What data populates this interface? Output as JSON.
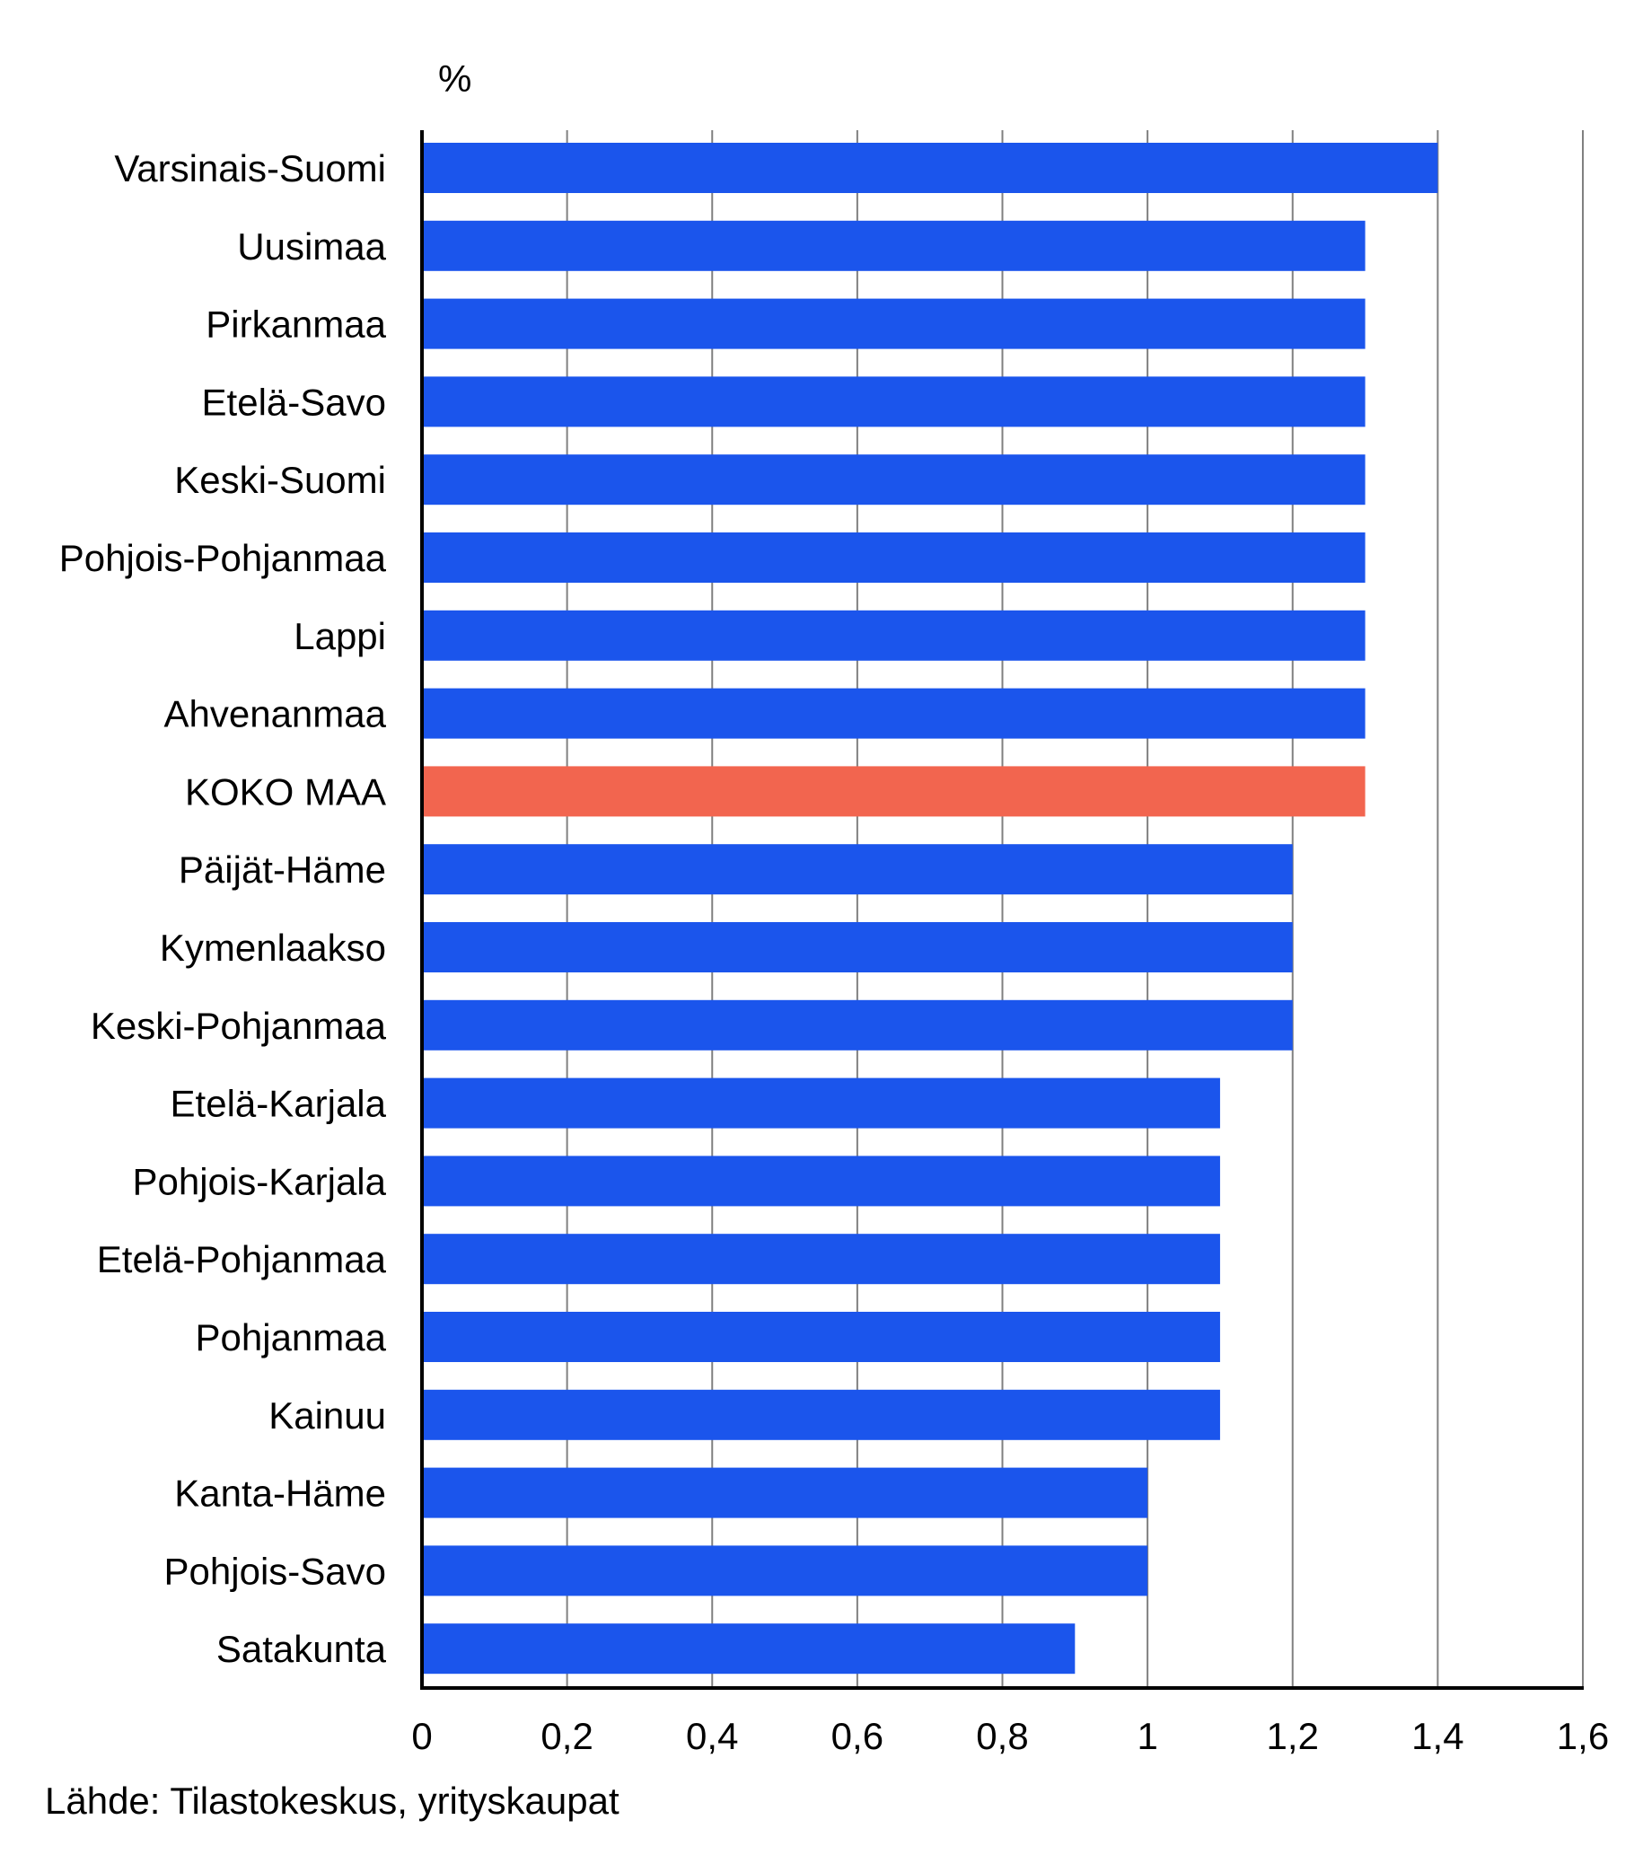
{
  "chart_data": {
    "type": "bar",
    "orientation": "horizontal",
    "unit_label": "%",
    "categories": [
      "Varsinais-Suomi",
      "Uusimaa",
      "Pirkanmaa",
      "Etelä-Savo",
      "Keski-Suomi",
      "Pohjois-Pohjanmaa",
      "Lappi",
      "Ahvenanmaa",
      "KOKO MAA",
      "Päijät-Häme",
      "Kymenlaakso",
      "Keski-Pohjanmaa",
      "Etelä-Karjala",
      "Pohjois-Karjala",
      "Etelä-Pohjanmaa",
      "Pohjanmaa",
      "Kainuu",
      "Kanta-Häme",
      "Pohjois-Savo",
      "Satakunta"
    ],
    "values": [
      1.4,
      1.3,
      1.3,
      1.3,
      1.3,
      1.3,
      1.3,
      1.3,
      1.3,
      1.2,
      1.2,
      1.2,
      1.1,
      1.1,
      1.1,
      1.1,
      1.1,
      1.0,
      1.0,
      0.9
    ],
    "highlight_category": "KOKO MAA",
    "xlim": [
      0,
      1.6
    ],
    "xticks": [
      0,
      0.2,
      0.4,
      0.6,
      0.8,
      1,
      1.2,
      1.4,
      1.6
    ],
    "xtick_labels": [
      "0",
      "0,2",
      "0,4",
      "0,6",
      "0,8",
      "1",
      "1,2",
      "1,4",
      "1,6"
    ],
    "grid": "vertical",
    "colors": {
      "bar": "#1b55ec",
      "highlight": "#f2654f",
      "grid": "#808080",
      "axis": "#000000"
    }
  },
  "source": "Lähde: Tilastokeskus, yrityskaupat"
}
